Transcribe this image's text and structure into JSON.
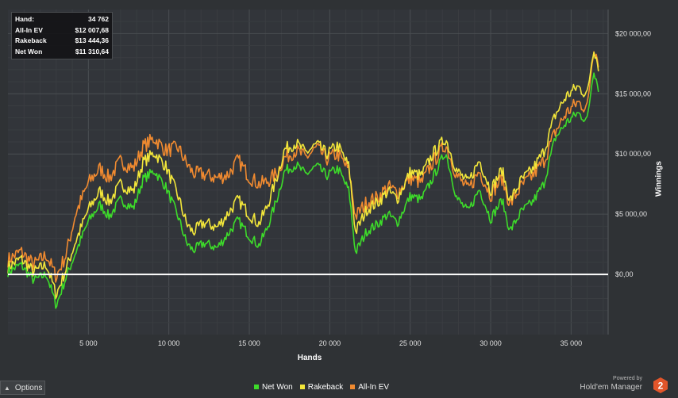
{
  "chart_data": {
    "type": "line",
    "xlabel": "Hands",
    "ylabel": "Winnings",
    "xlim": [
      0,
      37300
    ],
    "ylim": [
      -5000,
      22000
    ],
    "x_ticks": [
      5000,
      10000,
      15000,
      20000,
      25000,
      30000,
      35000
    ],
    "x_tick_labels": [
      "5 000",
      "10 000",
      "15 000",
      "20 000",
      "25 000",
      "30 000",
      "35 000"
    ],
    "y_ticks": [
      0,
      5000,
      10000,
      15000,
      20000
    ],
    "y_tick_labels": [
      "$0,00",
      "$5 000,00",
      "$10 000,00",
      "$15 000,00",
      "$20 000,00"
    ],
    "zero_line": 0,
    "grid": true,
    "legend_position": "bottom-center",
    "series": [
      {
        "name": "Net Won",
        "color": "#3ddb2a",
        "x": [
          0,
          800,
          1600,
          2400,
          3000,
          3600,
          4200,
          5000,
          5700,
          6300,
          7000,
          7800,
          8400,
          9100,
          9800,
          10600,
          11100,
          11500,
          12200,
          13000,
          13700,
          14300,
          15000,
          15600,
          16100,
          16700,
          17200,
          17900,
          18500,
          19200,
          19800,
          20500,
          21200,
          21600,
          22300,
          23000,
          23600,
          24200,
          25000,
          25700,
          26400,
          27200,
          27900,
          28600,
          29300,
          30000,
          30700,
          31200,
          31900,
          32600,
          33300,
          34000,
          34700,
          35400,
          36000,
          36400,
          36700
        ],
        "y": [
          200,
          800,
          -500,
          0,
          -2600,
          -300,
          1800,
          4400,
          5800,
          4800,
          6200,
          5500,
          7900,
          8600,
          7300,
          4700,
          2600,
          2000,
          2600,
          2200,
          3400,
          4500,
          3200,
          2400,
          3800,
          6200,
          8600,
          9100,
          8300,
          9000,
          8200,
          8800,
          6900,
          1800,
          3600,
          4200,
          5000,
          4300,
          6500,
          6200,
          8000,
          10200,
          6300,
          5200,
          7100,
          4600,
          6200,
          3600,
          5200,
          6000,
          7500,
          11300,
          12600,
          13400,
          12800,
          17100,
          15500
        ]
      },
      {
        "name": "Rakeback",
        "color": "#f2e63a",
        "x": [
          0,
          800,
          1600,
          2400,
          3000,
          3600,
          4200,
          5000,
          5700,
          6300,
          7000,
          7800,
          8400,
          9100,
          9800,
          10600,
          11100,
          11500,
          12200,
          13000,
          13700,
          14300,
          15000,
          15600,
          16100,
          16700,
          17200,
          17900,
          18500,
          19200,
          19800,
          20500,
          21200,
          21600,
          22300,
          23000,
          23600,
          24200,
          25000,
          25700,
          26400,
          27200,
          27900,
          28600,
          29300,
          30000,
          30700,
          31200,
          31900,
          32600,
          33300,
          34000,
          34700,
          35400,
          36000,
          36400,
          36700
        ],
        "y": [
          600,
          1300,
          200,
          800,
          -1700,
          400,
          2700,
          5400,
          6900,
          6000,
          7500,
          6900,
          9300,
          10100,
          9000,
          6400,
          4200,
          3500,
          4300,
          3900,
          5100,
          6200,
          5000,
          4200,
          5600,
          8000,
          10400,
          10900,
          10100,
          10800,
          10000,
          10700,
          8900,
          3500,
          5400,
          6000,
          6900,
          6300,
          8500,
          8200,
          10000,
          11300,
          8600,
          7600,
          9500,
          7000,
          8700,
          6100,
          7800,
          8700,
          10200,
          13200,
          14800,
          15600,
          14900,
          18900,
          17300
        ]
      },
      {
        "name": "All-In EV",
        "color": "#f08a30",
        "x": [
          0,
          800,
          1600,
          2400,
          3000,
          3600,
          4200,
          5000,
          5700,
          6300,
          7000,
          7800,
          8400,
          9100,
          9800,
          10600,
          11100,
          11500,
          12200,
          13000,
          13700,
          14300,
          15000,
          15600,
          16100,
          16700,
          17200,
          17900,
          18500,
          19200,
          19800,
          20500,
          21200,
          21600,
          22300,
          23000,
          23600,
          24200,
          25000,
          25700,
          26400,
          27200,
          27900,
          28600,
          29300,
          30000,
          30700,
          31200,
          31900,
          32600,
          33300,
          34000,
          34700,
          35400,
          36000,
          36400,
          36700
        ],
        "y": [
          1200,
          1900,
          800,
          1600,
          -200,
          1600,
          5000,
          7600,
          8800,
          8000,
          9400,
          8800,
          10600,
          11300,
          10300,
          10500,
          9200,
          8400,
          8300,
          8000,
          8300,
          9500,
          8100,
          7500,
          7700,
          8400,
          9700,
          10300,
          9700,
          10500,
          9600,
          10000,
          8600,
          4800,
          6000,
          6400,
          7300,
          6800,
          8000,
          7600,
          9300,
          10800,
          8200,
          7000,
          8600,
          6600,
          8000,
          5800,
          7300,
          8200,
          9400,
          11800,
          13400,
          14300,
          13800,
          19000,
          17700
        ]
      }
    ]
  },
  "stats": [
    {
      "label": "Hand:",
      "value": "34 762"
    },
    {
      "label": "All-In EV",
      "value": "$12 007,68"
    },
    {
      "label": "Rakeback",
      "value": "$13 444,36"
    },
    {
      "label": "Net Won",
      "value": "$11 310,64"
    }
  ],
  "options_label": "Options",
  "brand": {
    "powered_by": "Powered by",
    "name": "Hold'em Manager",
    "logo_number": "2"
  },
  "colors": {
    "background": "#2f3235",
    "grid": "#44474a",
    "zero_line": "#ffffff",
    "brand_logo": "#e2552a"
  }
}
